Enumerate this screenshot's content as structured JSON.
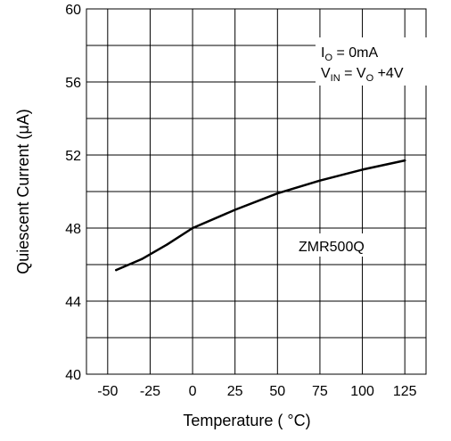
{
  "chart_data": {
    "type": "line",
    "title": "",
    "xlabel": "Temperature ( °C)",
    "ylabel": "Quiescent Current (μA)",
    "xlim": [
      -62.5,
      137.5
    ],
    "ylim": [
      40,
      60
    ],
    "x_ticks": [
      -50,
      -25,
      0,
      25,
      50,
      75,
      100,
      125
    ],
    "y_ticks": [
      40,
      44,
      48,
      52,
      56,
      60
    ],
    "x_tick_labels": [
      "-50",
      "-25",
      "0",
      "25",
      "50",
      "75",
      "100",
      "125"
    ],
    "y_tick_labels": [
      "40",
      "44",
      "48",
      "52",
      "56",
      "60"
    ],
    "grid": true,
    "series": [
      {
        "name": "ZMR500Q",
        "x": [
          -45,
          -30,
          -15,
          0,
          25,
          50,
          75,
          100,
          125
        ],
        "y": [
          45.7,
          46.3,
          47.1,
          48.0,
          49.0,
          49.9,
          50.6,
          51.2,
          51.7
        ]
      }
    ],
    "annotations": {
      "condition1": {
        "I": "I",
        "O_sub": "O",
        "rest": " = 0mA"
      },
      "condition2": {
        "V": "V",
        "IN_sub": "IN",
        "mid": " = V",
        "O_sub": "O",
        "rest": " +4V"
      },
      "series_label": "ZMR500Q"
    },
    "colors": {
      "line": "#000000",
      "grid": "#000000",
      "background": "#ffffff"
    }
  }
}
